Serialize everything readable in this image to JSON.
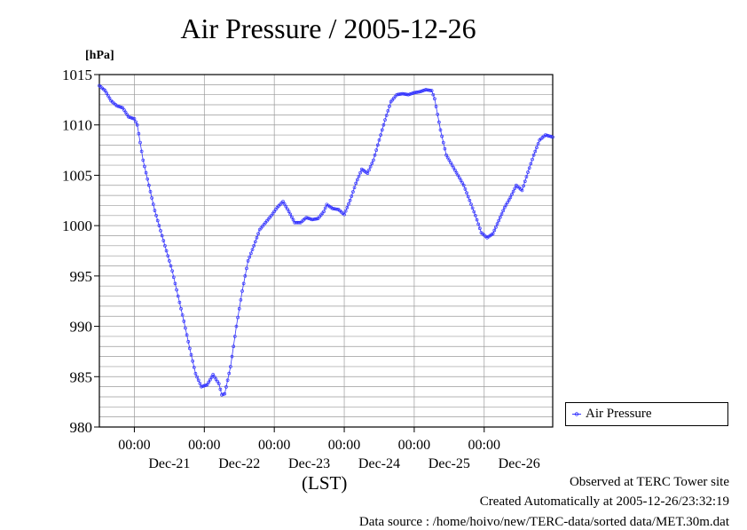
{
  "chart_data": {
    "type": "line",
    "title": "Air Pressure / 2005-12-26",
    "ylabel": "[hPa]",
    "xlabel": "(LST)",
    "ylim": [
      980,
      1015
    ],
    "yticks": [
      980,
      985,
      990,
      995,
      1000,
      1005,
      1010,
      1015
    ],
    "xlim": [
      "2005-12-20T12:00",
      "2005-12-26T23:30"
    ],
    "xticks": [
      {
        "time": "2005-12-21T00:00",
        "label": "00:00"
      },
      {
        "time": "2005-12-22T00:00",
        "label": "00:00"
      },
      {
        "time": "2005-12-23T00:00",
        "label": "00:00"
      },
      {
        "time": "2005-12-24T00:00",
        "label": "00:00"
      },
      {
        "time": "2005-12-25T00:00",
        "label": "00:00"
      },
      {
        "time": "2005-12-26T00:00",
        "label": "00:00"
      }
    ],
    "day_labels": [
      {
        "time": "2005-12-21T12:00",
        "label": "Dec-21"
      },
      {
        "time": "2005-12-22T12:00",
        "label": "Dec-22"
      },
      {
        "time": "2005-12-23T12:00",
        "label": "Dec-23"
      },
      {
        "time": "2005-12-24T12:00",
        "label": "Dec-24"
      },
      {
        "time": "2005-12-25T12:00",
        "label": "Dec-25"
      },
      {
        "time": "2005-12-26T12:00",
        "label": "Dec-26"
      }
    ],
    "grid": true,
    "legend_position": "right",
    "series": [
      {
        "name": "Air Pressure",
        "color": "#3333ff",
        "marker": "circle",
        "points": [
          [
            "2005-12-20T12:00",
            1013.9
          ],
          [
            "2005-12-20T14:00",
            1013.4
          ],
          [
            "2005-12-20T16:00",
            1012.4
          ],
          [
            "2005-12-20T18:00",
            1011.9
          ],
          [
            "2005-12-20T20:00",
            1011.7
          ],
          [
            "2005-12-20T22:00",
            1010.8
          ],
          [
            "2005-12-21T00:00",
            1010.6
          ],
          [
            "2005-12-21T01:00",
            1010.0
          ],
          [
            "2005-12-21T03:00",
            1006.5
          ],
          [
            "2005-12-21T05:00",
            1004.0
          ],
          [
            "2005-12-21T07:00",
            1001.5
          ],
          [
            "2005-12-21T09:00",
            999.5
          ],
          [
            "2005-12-21T11:00",
            997.5
          ],
          [
            "2005-12-21T13:00",
            995.5
          ],
          [
            "2005-12-21T15:00",
            993.0
          ],
          [
            "2005-12-21T17:00",
            990.5
          ],
          [
            "2005-12-21T19:00",
            987.8
          ],
          [
            "2005-12-21T21:00",
            985.3
          ],
          [
            "2005-12-21T23:00",
            984.0
          ],
          [
            "2005-12-22T01:00",
            984.2
          ],
          [
            "2005-12-22T03:00",
            985.2
          ],
          [
            "2005-12-22T05:00",
            984.3
          ],
          [
            "2005-12-22T06:00",
            983.2
          ],
          [
            "2005-12-22T07:00",
            983.3
          ],
          [
            "2005-12-22T09:00",
            986.0
          ],
          [
            "2005-12-22T11:00",
            990.0
          ],
          [
            "2005-12-22T13:00",
            993.5
          ],
          [
            "2005-12-22T15:00",
            996.5
          ],
          [
            "2005-12-22T17:00",
            998.0
          ],
          [
            "2005-12-22T19:00",
            999.6
          ],
          [
            "2005-12-22T21:00",
            1000.3
          ],
          [
            "2005-12-22T23:00",
            1001.0
          ],
          [
            "2005-12-23T01:00",
            1001.8
          ],
          [
            "2005-12-23T03:00",
            1002.4
          ],
          [
            "2005-12-23T05:00",
            1001.4
          ],
          [
            "2005-12-23T07:00",
            1000.3
          ],
          [
            "2005-12-23T09:00",
            1000.3
          ],
          [
            "2005-12-23T11:00",
            1000.8
          ],
          [
            "2005-12-23T13:00",
            1000.6
          ],
          [
            "2005-12-23T15:00",
            1000.7
          ],
          [
            "2005-12-23T17:00",
            1001.4
          ],
          [
            "2005-12-23T18:00",
            1002.1
          ],
          [
            "2005-12-23T20:00",
            1001.7
          ],
          [
            "2005-12-23T22:00",
            1001.6
          ],
          [
            "2005-12-24T00:00",
            1001.1
          ],
          [
            "2005-12-24T02:00",
            1002.5
          ],
          [
            "2005-12-24T04:00",
            1004.2
          ],
          [
            "2005-12-24T06:00",
            1005.6
          ],
          [
            "2005-12-24T08:00",
            1005.2
          ],
          [
            "2005-12-24T10:00",
            1006.5
          ],
          [
            "2005-12-24T12:00",
            1008.5
          ],
          [
            "2005-12-24T14:00",
            1010.5
          ],
          [
            "2005-12-24T16:00",
            1012.3
          ],
          [
            "2005-12-24T18:00",
            1013.0
          ],
          [
            "2005-12-24T20:00",
            1013.1
          ],
          [
            "2005-12-24T22:00",
            1013.0
          ],
          [
            "2005-12-25T00:00",
            1013.2
          ],
          [
            "2005-12-25T02:00",
            1013.3
          ],
          [
            "2005-12-25T04:00",
            1013.5
          ],
          [
            "2005-12-25T06:00",
            1013.4
          ],
          [
            "2005-12-25T07:00",
            1012.6
          ],
          [
            "2005-12-25T09:00",
            1009.5
          ],
          [
            "2005-12-25T11:00",
            1007.0
          ],
          [
            "2005-12-25T13:00",
            1006.0
          ],
          [
            "2005-12-25T15:00",
            1005.0
          ],
          [
            "2005-12-25T17:00",
            1004.0
          ],
          [
            "2005-12-25T19:00",
            1002.5
          ],
          [
            "2005-12-25T21:00",
            1001.0
          ],
          [
            "2005-12-25T23:00",
            999.3
          ],
          [
            "2005-12-26T01:00",
            998.8
          ],
          [
            "2005-12-26T03:00",
            999.2
          ],
          [
            "2005-12-26T05:00",
            1000.5
          ],
          [
            "2005-12-26T07:00",
            1001.8
          ],
          [
            "2005-12-26T09:00",
            1002.8
          ],
          [
            "2005-12-26T11:00",
            1004.0
          ],
          [
            "2005-12-26T13:00",
            1003.5
          ],
          [
            "2005-12-26T15:00",
            1005.3
          ],
          [
            "2005-12-26T17:00",
            1007.0
          ],
          [
            "2005-12-26T19:00",
            1008.5
          ],
          [
            "2005-12-26T21:00",
            1009.0
          ],
          [
            "2005-12-26T23:30",
            1008.8
          ]
        ]
      }
    ]
  },
  "footer": {
    "observed": "Observed at TERC Tower site",
    "created": "Created Automatically at 2005-12-26/23:32:19",
    "source": "Data source : /home/hoivo/new/TERC-data/sorted  data/MET.30m.dat"
  }
}
